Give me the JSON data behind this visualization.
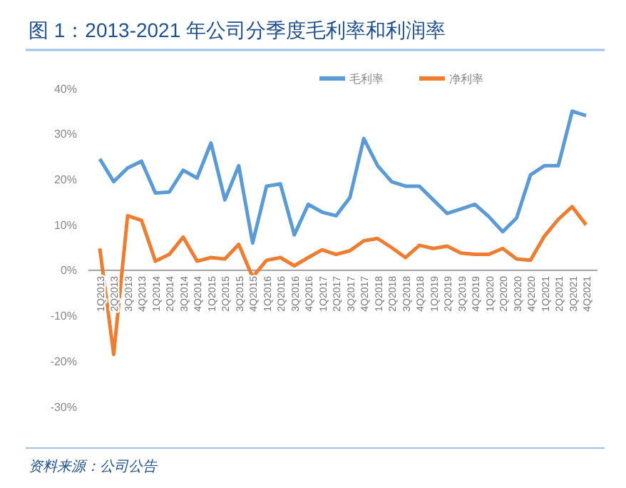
{
  "chart_data": {
    "type": "line",
    "title": "图 1：2013-2021 年公司分季度毛利率和利润率",
    "categories": [
      "1Q2013",
      "2Q2013",
      "3Q2013",
      "4Q2013",
      "1Q2014",
      "2Q2014",
      "3Q2014",
      "4Q2014",
      "1Q2015",
      "2Q2015",
      "3Q2015",
      "4Q2015",
      "1Q2016",
      "2Q2016",
      "3Q2016",
      "4Q2016",
      "1Q2017",
      "2Q2017",
      "3Q2017",
      "4Q2017",
      "1Q2018",
      "2Q2018",
      "3Q2018",
      "4Q2018",
      "1Q2019",
      "2Q2019",
      "3Q2019",
      "4Q2019",
      "1Q2020",
      "2Q2020",
      "3Q2020",
      "4Q2020",
      "1Q2021",
      "2Q2021",
      "3Q2021",
      "4Q2021"
    ],
    "series": [
      {
        "name": "毛利率",
        "color": "#5b9bd5",
        "values": [
          24.5,
          19.5,
          22.5,
          24,
          17,
          17.2,
          22,
          20.3,
          28,
          15.5,
          23,
          6,
          18.5,
          19,
          7.8,
          14.5,
          12.8,
          12,
          16,
          29,
          23,
          19.5,
          18.5,
          18.5,
          15.5,
          12.5,
          13.5,
          14.5,
          11.8,
          8.5,
          11.5,
          21,
          23,
          23,
          35,
          34
        ]
      },
      {
        "name": "净利率",
        "color": "#ed7d31",
        "values": [
          4.8,
          -18.5,
          12,
          11,
          2,
          3.5,
          7.3,
          2,
          2.8,
          2.5,
          5.7,
          -1.5,
          2.2,
          2.8,
          1,
          2.8,
          4.5,
          3.5,
          4.3,
          6.5,
          7,
          5,
          2.8,
          5.5,
          4.8,
          5.3,
          3.8,
          3.5,
          3.5,
          4.8,
          2.5,
          2.2,
          7.5,
          11.2,
          14,
          10
        ]
      }
    ],
    "ylim": [
      -30,
      40
    ],
    "yticks": [
      {
        "value": -30,
        "label": "-30%"
      },
      {
        "value": -20,
        "label": "-20%"
      },
      {
        "value": -10,
        "label": "-10%"
      },
      {
        "value": 0,
        "label": "0%"
      },
      {
        "value": 10,
        "label": "10%"
      },
      {
        "value": 20,
        "label": "20%"
      },
      {
        "value": 30,
        "label": "30%"
      },
      {
        "value": 40,
        "label": "40%"
      }
    ],
    "grid": false,
    "legend": "top right",
    "marker": "none",
    "line_style": "solid",
    "annotations": [
      "资料来源：公司公告"
    ]
  }
}
